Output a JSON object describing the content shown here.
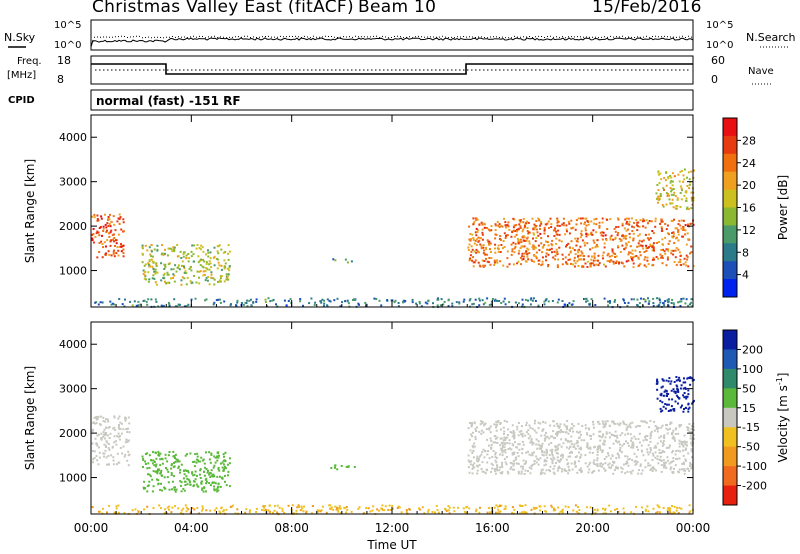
{
  "header": {
    "title": "Christmas Valley East (fitACF)",
    "beam": "Beam 10",
    "date": "15/Feb/2016"
  },
  "status_panel": {
    "nsky_label": "N.Sky",
    "nsky_ticks": [
      "10^5",
      "10^0"
    ],
    "nsearch_label": "N.Search",
    "nsearch_ticks": [
      "10^5",
      "10^0"
    ],
    "freq_label": "Freq.",
    "freq_unit": "[MHz]",
    "freq_ticks": [
      "18",
      "8"
    ],
    "nave_label": "Nave",
    "nave_ticks": [
      "60",
      "0"
    ],
    "cpid_label": "CPID",
    "cpid_value": "normal (fast) -151 RF"
  },
  "axes": {
    "x_label": "Time UT",
    "x_ticks": [
      "00:00",
      "04:00",
      "08:00",
      "12:00",
      "16:00",
      "20:00",
      "00:00"
    ],
    "y_label": "Slant Range [km]",
    "y_ticks": [
      "1000",
      "2000",
      "3000",
      "4000"
    ]
  },
  "power_scale": {
    "label": "Power [dB]",
    "ticks": [
      "4",
      "8",
      "12",
      "16",
      "20",
      "24",
      "28"
    ],
    "colors": [
      "#0022ee",
      "#1c4fb8",
      "#2a7a8a",
      "#4a9a6a",
      "#8ab832",
      "#ccc020",
      "#f0a020",
      "#f07010",
      "#e83a10",
      "#e81010"
    ]
  },
  "velocity_scale": {
    "label": "Velocity [m s",
    "label_sup": "-1",
    "label_end": "]",
    "ticks": [
      "200",
      "100",
      "50",
      "15",
      "-15",
      "-50",
      "-100",
      "-200"
    ],
    "colors": [
      "#0a1ea0",
      "#1e5ab4",
      "#2e8a6a",
      "#5ab83a",
      "#c8c8c0",
      "#f0c020",
      "#f09a20",
      "#f06a20",
      "#e82010"
    ]
  },
  "chart_data": [
    {
      "type": "heatmap",
      "title": "Power",
      "xlabel": "Time UT",
      "ylabel": "Slant Range [km]",
      "xlim": [
        0,
        24
      ],
      "ylim": [
        180,
        4500
      ],
      "colorbar_label": "Power [dB]",
      "colorbar_ticks": [
        4,
        8,
        12,
        16,
        20,
        24,
        28
      ],
      "regions": [
        {
          "t": [
            0.0,
            1.3
          ],
          "range": [
            1300,
            2300
          ],
          "value": 26
        },
        {
          "t": [
            2.0,
            5.5
          ],
          "range": [
            700,
            1600
          ],
          "value": 16
        },
        {
          "t": [
            9.5,
            10.5
          ],
          "range": [
            1200,
            1300
          ],
          "value": 10
        },
        {
          "t": [
            0.0,
            24.0
          ],
          "range": [
            200,
            400
          ],
          "value": 8
        },
        {
          "t": [
            15.0,
            24.0
          ],
          "range": [
            1100,
            2200
          ],
          "value": 24
        },
        {
          "t": [
            22.5,
            24.0
          ],
          "range": [
            2400,
            3300
          ],
          "value": 18
        }
      ]
    },
    {
      "type": "heatmap",
      "title": "Velocity",
      "xlabel": "Time UT",
      "ylabel": "Slant Range [km]",
      "xlim": [
        0,
        24
      ],
      "ylim": [
        180,
        4500
      ],
      "colorbar_label": "Velocity [m s-1]",
      "colorbar_ticks": [
        200,
        100,
        50,
        15,
        -15,
        -50,
        -100,
        -200
      ],
      "regions": [
        {
          "t": [
            0.0,
            1.5
          ],
          "range": [
            1300,
            2400
          ],
          "value": 0
        },
        {
          "t": [
            2.0,
            5.5
          ],
          "range": [
            700,
            1600
          ],
          "value": 30
        },
        {
          "t": [
            9.5,
            10.5
          ],
          "range": [
            1200,
            1300
          ],
          "value": 30
        },
        {
          "t": [
            0.0,
            24.0
          ],
          "range": [
            200,
            400
          ],
          "value": -40
        },
        {
          "t": [
            15.0,
            24.0
          ],
          "range": [
            1100,
            2300
          ],
          "value": 0
        },
        {
          "t": [
            22.5,
            24.0
          ],
          "range": [
            2500,
            3300
          ],
          "value": 220
        }
      ]
    }
  ]
}
